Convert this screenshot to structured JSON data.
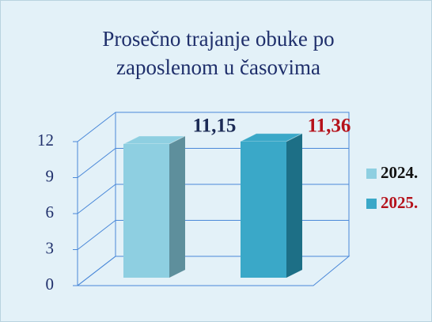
{
  "chart_data": {
    "type": "bar3d",
    "title": "Prosečno trajanje obuke po zaposlenom u časovima",
    "categories": [
      ""
    ],
    "series": [
      {
        "name": "2024.",
        "color": "#8ecfe1",
        "side_color": "#5e8f9c",
        "label_color": "#1b2a55",
        "legend_text_color": "#111111",
        "values": [
          11.15
        ],
        "value_labels": [
          "11,15"
        ]
      },
      {
        "name": "2025.",
        "color": "#3aa8c8",
        "side_color": "#1d6f86",
        "label_color": "#b5121b",
        "legend_text_color": "#b5121b",
        "values": [
          11.36
        ],
        "value_labels": [
          "11,36"
        ]
      }
    ],
    "ylim": [
      0,
      12
    ],
    "yticks": [
      0,
      3,
      6,
      9,
      12
    ],
    "grid": true,
    "legend": "right"
  }
}
